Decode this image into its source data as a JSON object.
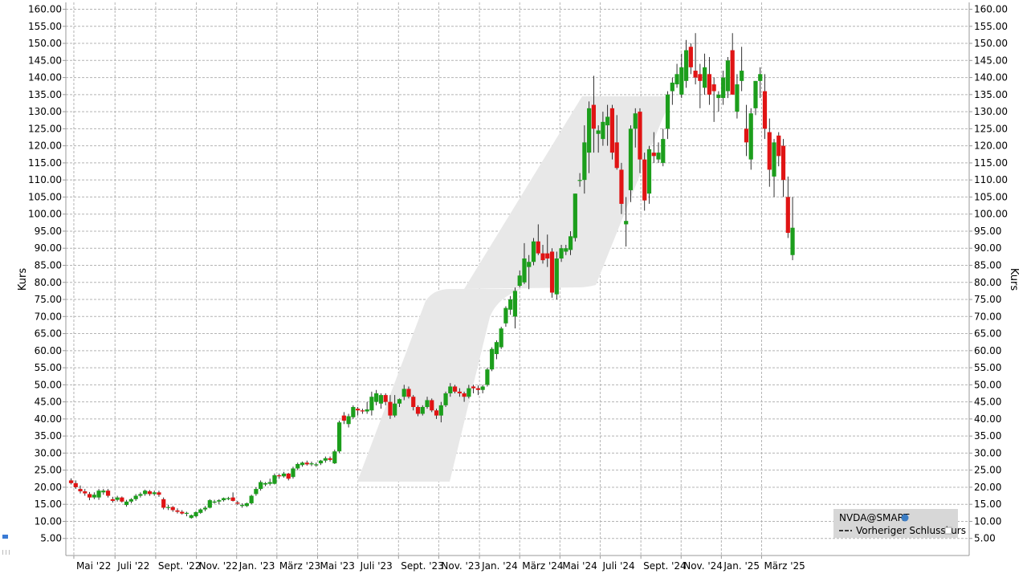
{
  "chart_data": {
    "type": "candlestick",
    "symbol": "NVDA@SMART",
    "ylabel": "Kurs",
    "ylim": [
      0,
      162
    ],
    "grid": true,
    "legend_position": "bottom-right",
    "legend": {
      "symbol_label": "NVDA@SMART",
      "previous_close_label": "Vorheriger Schlusskurs"
    },
    "y_ticks": [
      "5.00",
      "10.00",
      "15.00",
      "20.00",
      "25.00",
      "30.00",
      "35.00",
      "40.00",
      "45.00",
      "50.00",
      "55.00",
      "60.00",
      "65.00",
      "70.00",
      "75.00",
      "80.00",
      "85.00",
      "90.00",
      "95.00",
      "100.00",
      "105.00",
      "110.00",
      "115.00",
      "120.00",
      "125.00",
      "130.00",
      "135.00",
      "140.00",
      "145.00",
      "150.00",
      "155.00",
      "160.00"
    ],
    "x_ticks": [
      {
        "label": "Mai '22",
        "week": 0.6
      },
      {
        "label": "Juli '22",
        "week": 9.5
      },
      {
        "label": "Sept. '22",
        "week": 18.3
      },
      {
        "label": "Nov. '22",
        "week": 27.1
      },
      {
        "label": "Jan. '23",
        "week": 35.8
      },
      {
        "label": "März '23",
        "week": 44.5
      },
      {
        "label": "Mai '23",
        "week": 53.3
      },
      {
        "label": "Juli '23",
        "week": 62.0
      },
      {
        "label": "Sept. '23",
        "week": 70.8
      },
      {
        "label": "Nov. '23",
        "week": 79.5
      },
      {
        "label": "Jan. '24",
        "week": 88.3
      },
      {
        "label": "März '24",
        "week": 97.0
      },
      {
        "label": "Mai '24",
        "week": 105.7
      },
      {
        "label": "Juli '24",
        "week": 114.4
      },
      {
        "label": "Sept. '24",
        "week": 123.2
      },
      {
        "label": "Nov. '24",
        "week": 131.9
      },
      {
        "label": "Jan. '25",
        "week": 140.6
      },
      {
        "label": "März '25",
        "week": 149.3
      }
    ],
    "candles": [
      {
        "o": 22,
        "h": 22.6,
        "l": 20.8,
        "c": 21.2
      },
      {
        "o": 21.2,
        "h": 22,
        "l": 19.5,
        "c": 20
      },
      {
        "o": 19.5,
        "h": 20.5,
        "l": 18.2,
        "c": 18.8
      },
      {
        "o": 18.8,
        "h": 19.5,
        "l": 17.5,
        "c": 18.2
      },
      {
        "o": 18,
        "h": 18.6,
        "l": 16.2,
        "c": 17
      },
      {
        "o": 17,
        "h": 18.5,
        "l": 16.5,
        "c": 17.8
      },
      {
        "o": 17,
        "h": 19.5,
        "l": 16.3,
        "c": 19
      },
      {
        "o": 18.5,
        "h": 19.5,
        "l": 17.8,
        "c": 19
      },
      {
        "o": 19,
        "h": 19.5,
        "l": 17,
        "c": 17.5
      },
      {
        "o": 16.5,
        "h": 17.2,
        "l": 15.5,
        "c": 16
      },
      {
        "o": 16.3,
        "h": 17.5,
        "l": 15.8,
        "c": 17
      },
      {
        "o": 17,
        "h": 17.3,
        "l": 15.5,
        "c": 15.8
      },
      {
        "o": 14.8,
        "h": 16.3,
        "l": 14.3,
        "c": 15.8
      },
      {
        "o": 15.8,
        "h": 16.8,
        "l": 15.3,
        "c": 16.5
      },
      {
        "o": 16.5,
        "h": 18,
        "l": 16,
        "c": 17.5
      },
      {
        "o": 17.5,
        "h": 18.5,
        "l": 17,
        "c": 18
      },
      {
        "o": 18,
        "h": 19.3,
        "l": 17.5,
        "c": 19
      },
      {
        "o": 18.8,
        "h": 19.2,
        "l": 17.5,
        "c": 18
      },
      {
        "o": 18,
        "h": 19,
        "l": 17.5,
        "c": 18.5
      },
      {
        "o": 18.5,
        "h": 19,
        "l": 17.2,
        "c": 17.8
      },
      {
        "o": 16.5,
        "h": 17,
        "l": 13.5,
        "c": 14
      },
      {
        "o": 14,
        "h": 14.8,
        "l": 13.3,
        "c": 14.2
      },
      {
        "o": 14.2,
        "h": 14.5,
        "l": 12.8,
        "c": 13.3
      },
      {
        "o": 13.2,
        "h": 13.8,
        "l": 12.3,
        "c": 12.8
      },
      {
        "o": 12.8,
        "h": 13.3,
        "l": 12,
        "c": 12.3
      },
      {
        "o": 12.3,
        "h": 12.8,
        "l": 11.5,
        "c": 12.5
      },
      {
        "o": 11,
        "h": 12,
        "l": 10.8,
        "c": 11.8
      },
      {
        "o": 11.5,
        "h": 13,
        "l": 11.2,
        "c": 12.7
      },
      {
        "o": 12.5,
        "h": 13.8,
        "l": 12.2,
        "c": 13.5
      },
      {
        "o": 13.5,
        "h": 14.5,
        "l": 13,
        "c": 14
      },
      {
        "o": 14,
        "h": 16.5,
        "l": 13.8,
        "c": 16.2
      },
      {
        "o": 15.5,
        "h": 16.3,
        "l": 15.2,
        "c": 15.8
      },
      {
        "o": 15.8,
        "h": 16.5,
        "l": 15,
        "c": 16.2
      },
      {
        "o": 16.2,
        "h": 17,
        "l": 15.8,
        "c": 16.8
      },
      {
        "o": 16.5,
        "h": 17.2,
        "l": 16.2,
        "c": 16.8
      },
      {
        "o": 17,
        "h": 18.5,
        "l": 15.8,
        "c": 16
      },
      {
        "o": 15.5,
        "h": 16,
        "l": 14.8,
        "c": 15.2
      },
      {
        "o": 14.5,
        "h": 15.3,
        "l": 14,
        "c": 14.8
      },
      {
        "o": 14.5,
        "h": 15.5,
        "l": 14.2,
        "c": 15.3
      },
      {
        "o": 15.3,
        "h": 17.8,
        "l": 15,
        "c": 17.5
      },
      {
        "o": 18,
        "h": 20,
        "l": 17.5,
        "c": 19.5
      },
      {
        "o": 19.5,
        "h": 22,
        "l": 19,
        "c": 21.5
      },
      {
        "o": 20.8,
        "h": 21.5,
        "l": 20.3,
        "c": 21.2
      },
      {
        "o": 21,
        "h": 22.5,
        "l": 20.5,
        "c": 21.5
      },
      {
        "o": 21,
        "h": 24,
        "l": 20.8,
        "c": 23.5
      },
      {
        "o": 23.5,
        "h": 24,
        "l": 22.5,
        "c": 23.2
      },
      {
        "o": 23.2,
        "h": 24.5,
        "l": 22.8,
        "c": 24
      },
      {
        "o": 24,
        "h": 24.2,
        "l": 22,
        "c": 22.5
      },
      {
        "o": 23,
        "h": 26,
        "l": 22.5,
        "c": 25.5
      },
      {
        "o": 25.5,
        "h": 27.2,
        "l": 25,
        "c": 26.8
      },
      {
        "o": 26.5,
        "h": 27.5,
        "l": 26,
        "c": 27.2
      },
      {
        "o": 27.2,
        "h": 27.8,
        "l": 26.3,
        "c": 26.7
      },
      {
        "o": 26.7,
        "h": 27.5,
        "l": 26.2,
        "c": 27
      },
      {
        "o": 26.5,
        "h": 27.2,
        "l": 26,
        "c": 26.7
      },
      {
        "o": 27,
        "h": 28,
        "l": 26.5,
        "c": 27.8
      },
      {
        "o": 27.8,
        "h": 29,
        "l": 27.2,
        "c": 28.5
      },
      {
        "o": 28.5,
        "h": 29,
        "l": 27.5,
        "c": 28
      },
      {
        "o": 27,
        "h": 31,
        "l": 26.8,
        "c": 30.5
      },
      {
        "o": 30.5,
        "h": 39.5,
        "l": 30,
        "c": 39
      },
      {
        "o": 41,
        "h": 42,
        "l": 38.5,
        "c": 39.5
      },
      {
        "o": 38.5,
        "h": 41.5,
        "l": 37.5,
        "c": 40.8
      },
      {
        "o": 40.5,
        "h": 44,
        "l": 40,
        "c": 43.5
      },
      {
        "o": 43,
        "h": 43.5,
        "l": 41,
        "c": 42.5
      },
      {
        "o": 42.5,
        "h": 43,
        "l": 41.5,
        "c": 42.2
      },
      {
        "o": 42.2,
        "h": 45,
        "l": 41.5,
        "c": 42.8
      },
      {
        "o": 42.5,
        "h": 48,
        "l": 41,
        "c": 46.5
      },
      {
        "o": 45,
        "h": 48.5,
        "l": 44,
        "c": 47.5
      },
      {
        "o": 44.5,
        "h": 47.5,
        "l": 43,
        "c": 47
      },
      {
        "o": 47,
        "h": 47.5,
        "l": 44,
        "c": 45
      },
      {
        "o": 45,
        "h": 47,
        "l": 40,
        "c": 41
      },
      {
        "o": 41,
        "h": 47,
        "l": 40.5,
        "c": 44.5
      },
      {
        "o": 44.5,
        "h": 46,
        "l": 43.5,
        "c": 45.8
      },
      {
        "o": 46.5,
        "h": 50,
        "l": 45.5,
        "c": 48.8
      },
      {
        "o": 48.8,
        "h": 49.5,
        "l": 46,
        "c": 46.5
      },
      {
        "o": 46.5,
        "h": 47,
        "l": 42.5,
        "c": 43.5
      },
      {
        "o": 43.5,
        "h": 44,
        "l": 40.8,
        "c": 41.5
      },
      {
        "o": 41.5,
        "h": 44,
        "l": 41,
        "c": 43.5
      },
      {
        "o": 43.5,
        "h": 46.5,
        "l": 43,
        "c": 45.5
      },
      {
        "o": 45.5,
        "h": 46,
        "l": 42,
        "c": 42.5
      },
      {
        "o": 42.5,
        "h": 43,
        "l": 40,
        "c": 41
      },
      {
        "o": 41,
        "h": 45,
        "l": 39,
        "c": 44
      },
      {
        "o": 44,
        "h": 48,
        "l": 43.5,
        "c": 47.5
      },
      {
        "o": 47.5,
        "h": 50.5,
        "l": 46.5,
        "c": 49.5
      },
      {
        "o": 49.5,
        "h": 50,
        "l": 47.5,
        "c": 48
      },
      {
        "o": 48,
        "h": 49,
        "l": 46.5,
        "c": 47.5
      },
      {
        "o": 47.5,
        "h": 48,
        "l": 45,
        "c": 46.5
      },
      {
        "o": 46.5,
        "h": 50,
        "l": 46,
        "c": 49
      },
      {
        "o": 49.5,
        "h": 50,
        "l": 47.5,
        "c": 49
      },
      {
        "o": 49,
        "h": 49.8,
        "l": 47,
        "c": 48.5
      },
      {
        "o": 48.5,
        "h": 50,
        "l": 47.5,
        "c": 49.5
      },
      {
        "o": 50,
        "h": 55,
        "l": 49.5,
        "c": 54.5
      },
      {
        "o": 54.5,
        "h": 61,
        "l": 54,
        "c": 60.5
      },
      {
        "o": 59,
        "h": 63,
        "l": 57.5,
        "c": 62.5
      },
      {
        "o": 61,
        "h": 67,
        "l": 60.5,
        "c": 66.5
      },
      {
        "o": 68,
        "h": 73,
        "l": 67,
        "c": 72.5
      },
      {
        "o": 72,
        "h": 76,
        "l": 70.5,
        "c": 75
      },
      {
        "o": 70,
        "h": 78.5,
        "l": 66.5,
        "c": 77.5
      },
      {
        "o": 79,
        "h": 83.5,
        "l": 78.5,
        "c": 82
      },
      {
        "o": 80,
        "h": 91.5,
        "l": 79.5,
        "c": 87
      },
      {
        "o": 84.5,
        "h": 88,
        "l": 78,
        "c": 86
      },
      {
        "o": 86,
        "h": 93,
        "l": 85,
        "c": 92
      },
      {
        "o": 92,
        "h": 97,
        "l": 88,
        "c": 88.5
      },
      {
        "o": 88.5,
        "h": 91,
        "l": 85.5,
        "c": 86.5
      },
      {
        "o": 88.5,
        "h": 94,
        "l": 84.5,
        "c": 87
      },
      {
        "o": 89,
        "h": 90,
        "l": 75.5,
        "c": 77
      },
      {
        "o": 76.5,
        "h": 89,
        "l": 75,
        "c": 87
      },
      {
        "o": 87,
        "h": 91,
        "l": 86,
        "c": 90
      },
      {
        "o": 89,
        "h": 91,
        "l": 88,
        "c": 90
      },
      {
        "o": 89.5,
        "h": 95,
        "l": 88,
        "c": 93.5
      },
      {
        "o": 93,
        "h": 106,
        "l": 92,
        "c": 106
      },
      {
        "o": 110,
        "h": 112,
        "l": 108,
        "c": 110
      },
      {
        "o": 110,
        "h": 126,
        "l": 106,
        "c": 121
      },
      {
        "o": 118,
        "h": 133,
        "l": 112,
        "c": 131
      },
      {
        "o": 132,
        "h": 140.5,
        "l": 118,
        "c": 125
      },
      {
        "o": 123.5,
        "h": 126,
        "l": 118,
        "c": 124.5
      },
      {
        "o": 122,
        "h": 130,
        "l": 120,
        "c": 127
      },
      {
        "o": 126,
        "h": 132,
        "l": 120,
        "c": 128.5
      },
      {
        "o": 131,
        "h": 132,
        "l": 116,
        "c": 118
      },
      {
        "o": 121,
        "h": 129,
        "l": 113,
        "c": 113.5
      },
      {
        "o": 113,
        "h": 115,
        "l": 100,
        "c": 103
      },
      {
        "o": 97,
        "h": 105,
        "l": 90.5,
        "c": 98
      },
      {
        "o": 107,
        "h": 126,
        "l": 103.5,
        "c": 125
      },
      {
        "o": 125,
        "h": 131,
        "l": 119.5,
        "c": 129.5
      },
      {
        "o": 130,
        "h": 131,
        "l": 112,
        "c": 116
      },
      {
        "o": 116,
        "h": 118,
        "l": 101,
        "c": 104
      },
      {
        "o": 106,
        "h": 120,
        "l": 103,
        "c": 119
      },
      {
        "o": 118,
        "h": 124,
        "l": 115,
        "c": 117
      },
      {
        "o": 116,
        "h": 121,
        "l": 115,
        "c": 118
      },
      {
        "o": 115,
        "h": 125,
        "l": 114,
        "c": 122
      },
      {
        "o": 125,
        "h": 136,
        "l": 122,
        "c": 135
      },
      {
        "o": 136,
        "h": 140,
        "l": 132,
        "c": 138.5
      },
      {
        "o": 138,
        "h": 144,
        "l": 137,
        "c": 141
      },
      {
        "o": 135,
        "h": 147,
        "l": 134,
        "c": 143
      },
      {
        "o": 139,
        "h": 151,
        "l": 137,
        "c": 148
      },
      {
        "o": 149,
        "h": 150,
        "l": 141,
        "c": 143
      },
      {
        "o": 142,
        "h": 153,
        "l": 138,
        "c": 140
      },
      {
        "o": 141,
        "h": 144,
        "l": 131,
        "c": 139
      },
      {
        "o": 137,
        "h": 147,
        "l": 135,
        "c": 143
      },
      {
        "o": 141,
        "h": 146,
        "l": 132,
        "c": 135
      },
      {
        "o": 138,
        "h": 140,
        "l": 127,
        "c": 136
      },
      {
        "o": 134,
        "h": 136,
        "l": 130,
        "c": 135
      },
      {
        "o": 134,
        "h": 142,
        "l": 132,
        "c": 140
      },
      {
        "o": 136,
        "h": 146,
        "l": 134,
        "c": 145
      },
      {
        "o": 148,
        "h": 153,
        "l": 135,
        "c": 135
      },
      {
        "o": 130,
        "h": 141,
        "l": 128,
        "c": 138
      },
      {
        "o": 139,
        "h": 149,
        "l": 136,
        "c": 142
      },
      {
        "o": 125,
        "h": 132,
        "l": 117,
        "c": 121
      },
      {
        "o": 116,
        "h": 131,
        "l": 113,
        "c": 129.5
      },
      {
        "o": 131,
        "h": 139,
        "l": 129,
        "c": 139
      },
      {
        "o": 139,
        "h": 143,
        "l": 134,
        "c": 141
      },
      {
        "o": 136,
        "h": 141,
        "l": 122,
        "c": 125
      },
      {
        "o": 124,
        "h": 128,
        "l": 108,
        "c": 113
      },
      {
        "o": 111,
        "h": 122,
        "l": 105,
        "c": 121
      },
      {
        "o": 123,
        "h": 124,
        "l": 114,
        "c": 117
      },
      {
        "o": 120,
        "h": 122,
        "l": 105,
        "c": 110
      },
      {
        "o": 105,
        "h": 111,
        "l": 93,
        "c": 94.5
      },
      {
        "o": 88,
        "h": 105,
        "l": 86.5,
        "c": 96
      }
    ]
  }
}
